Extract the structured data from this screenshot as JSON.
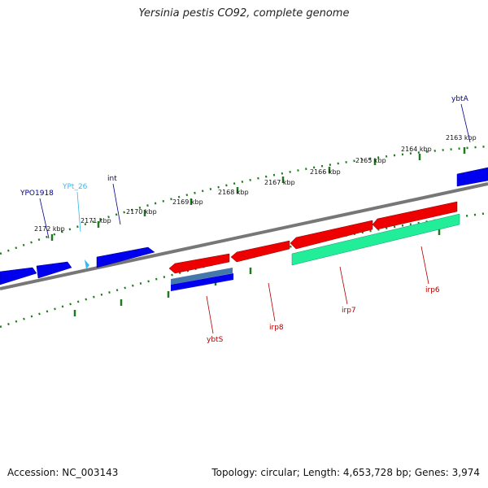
{
  "title": "Yersinia pestis CO92, complete genome",
  "footer": {
    "accession": "Accession: NC_003143",
    "summary": "Topology: circular; Length: 4,653,728 bp; Genes: 3,974"
  },
  "colors": {
    "backbone": "#777777",
    "ticks": "#1f7a1f",
    "gene_forward": "#0000ee",
    "gene_reverse": "#ee0000",
    "trna": "#33bbee",
    "misc_feature": "#22ee99",
    "label_forward": "#00008b",
    "label_reverse": "#b00000"
  },
  "scale_ticks": [
    {
      "label": "2163 kbp"
    },
    {
      "label": "2164 kbp"
    },
    {
      "label": "2165 kbp"
    },
    {
      "label": "2166 kbp"
    },
    {
      "label": "2167 kbp"
    },
    {
      "label": "2168 kbp"
    },
    {
      "label": "2169 kbp"
    },
    {
      "label": "2170 kbp"
    },
    {
      "label": "2171 kbp"
    },
    {
      "label": "2172 kbp"
    }
  ],
  "gene_labels": [
    {
      "name": "ybtA",
      "strand": "forward"
    },
    {
      "name": "int",
      "strand": "forward"
    },
    {
      "name": "YPt_26",
      "strand": "trna"
    },
    {
      "name": "YPO1918",
      "strand": "forward"
    },
    {
      "name": "ybtS",
      "strand": "reverse"
    },
    {
      "name": "irp8",
      "strand": "reverse"
    },
    {
      "name": "irp7",
      "strand": "reverse"
    },
    {
      "name": "irp6",
      "strand": "reverse"
    }
  ]
}
